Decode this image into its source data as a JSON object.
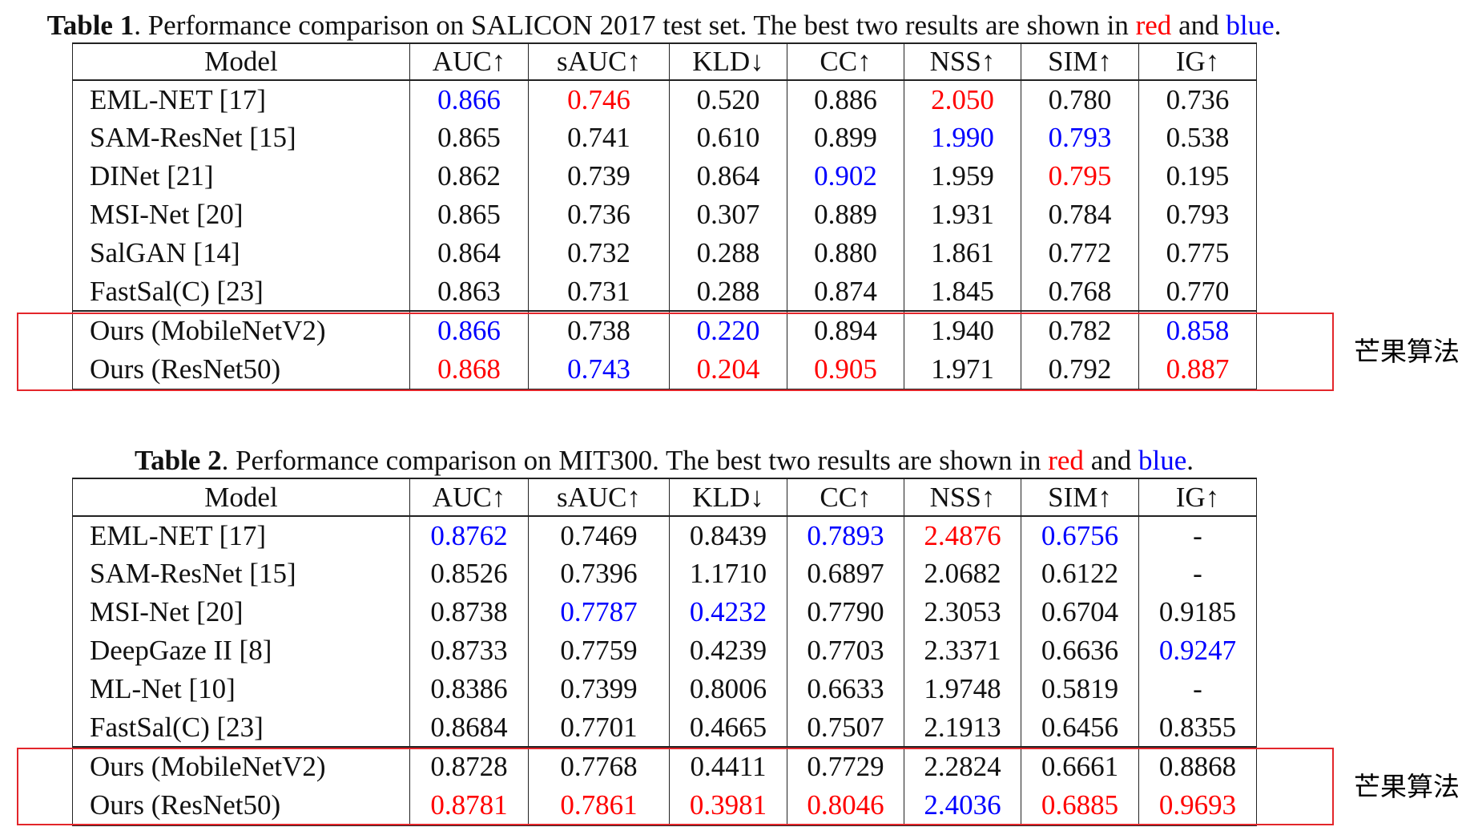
{
  "colors": {
    "red": "#ff0000",
    "blue": "#0000ff",
    "text": "#111111",
    "box": "#e3262b"
  },
  "tables": [
    {
      "caption": {
        "label": "Table 1",
        "text": ". Performance comparison on SALICON 2017 test set. The best two results are shown in ",
        "red_word": "red",
        "joiner": " and ",
        "blue_word": "blue",
        "end": "."
      },
      "headers": [
        "Model",
        "AUC↑",
        "sAUC↑",
        "KLD↓",
        "CC↑",
        "NSS↑",
        "SIM↑",
        "IG↑"
      ],
      "rows": [
        {
          "model": "EML-NET [17]",
          "values": [
            "0.866",
            "0.746",
            "0.520",
            "0.886",
            "2.050",
            "0.780",
            "0.736"
          ],
          "highlight": [
            "blue",
            "red",
            "",
            "",
            "red",
            "",
            ""
          ]
        },
        {
          "model": "SAM-ResNet [15]",
          "values": [
            "0.865",
            "0.741",
            "0.610",
            "0.899",
            "1.990",
            "0.793",
            "0.538"
          ],
          "highlight": [
            "",
            "",
            "",
            "",
            "blue",
            "blue",
            ""
          ]
        },
        {
          "model": "DINet [21]",
          "values": [
            "0.862",
            "0.739",
            "0.864",
            "0.902",
            "1.959",
            "0.795",
            "0.195"
          ],
          "highlight": [
            "",
            "",
            "",
            "blue",
            "",
            "red",
            ""
          ]
        },
        {
          "model": "MSI-Net [20]",
          "values": [
            "0.865",
            "0.736",
            "0.307",
            "0.889",
            "1.931",
            "0.784",
            "0.793"
          ]
        },
        {
          "model": "SalGAN [14]",
          "values": [
            "0.864",
            "0.732",
            "0.288",
            "0.880",
            "1.861",
            "0.772",
            "0.775"
          ]
        },
        {
          "model": "FastSal(C) [23]",
          "values": [
            "0.863",
            "0.731",
            "0.288",
            "0.874",
            "1.845",
            "0.768",
            "0.770"
          ]
        }
      ],
      "ours_rows": [
        {
          "model": "Ours (MobileNetV2)",
          "values": [
            "0.866",
            "0.738",
            "0.220",
            "0.894",
            "1.940",
            "0.782",
            "0.858"
          ],
          "highlight": [
            "blue",
            "",
            "blue",
            "",
            "",
            "",
            "blue"
          ]
        },
        {
          "model": "Ours (ResNet50)",
          "values": [
            "0.868",
            "0.743",
            "0.204",
            "0.905",
            "1.971",
            "0.792",
            "0.887"
          ],
          "highlight": [
            "red",
            "blue",
            "red",
            "red",
            "",
            "",
            "red"
          ]
        }
      ],
      "annotation": "芒果算法"
    },
    {
      "caption": {
        "label": "Table 2",
        "text": ". Performance comparison on MIT300. The best two results are shown in ",
        "red_word": "red",
        "joiner": " and ",
        "blue_word": "blue",
        "end": "."
      },
      "headers": [
        "Model",
        "AUC↑",
        "sAUC↑",
        "KLD↓",
        "CC↑",
        "NSS↑",
        "SIM↑",
        "IG↑"
      ],
      "rows": [
        {
          "model": "EML-NET [17]",
          "values": [
            "0.8762",
            "0.7469",
            "0.8439",
            "0.7893",
            "2.4876",
            "0.6756",
            "-"
          ],
          "highlight": [
            "blue",
            "",
            "",
            "blue",
            "red",
            "blue",
            ""
          ]
        },
        {
          "model": "SAM-ResNet [15]",
          "values": [
            "0.8526",
            "0.7396",
            "1.1710",
            "0.6897",
            "2.0682",
            "0.6122",
            "-"
          ]
        },
        {
          "model": "MSI-Net [20]",
          "values": [
            "0.8738",
            "0.7787",
            "0.4232",
            "0.7790",
            "2.3053",
            "0.6704",
            "0.9185"
          ],
          "highlight": [
            "",
            "blue",
            "blue",
            "",
            "",
            "",
            ""
          ]
        },
        {
          "model": "DeepGaze II [8]",
          "values": [
            "0.8733",
            "0.7759",
            "0.4239",
            "0.7703",
            "2.3371",
            "0.6636",
            "0.9247"
          ],
          "highlight": [
            "",
            "",
            "",
            "",
            "",
            "",
            "blue"
          ]
        },
        {
          "model": "ML-Net [10]",
          "values": [
            "0.8386",
            "0.7399",
            "0.8006",
            "0.6633",
            "1.9748",
            "0.5819",
            "-"
          ]
        },
        {
          "model": "FastSal(C) [23]",
          "values": [
            "0.8684",
            "0.7701",
            "0.4665",
            "0.7507",
            "2.1913",
            "0.6456",
            "0.8355"
          ]
        }
      ],
      "ours_rows": [
        {
          "model": "Ours (MobileNetV2)",
          "values": [
            "0.8728",
            "0.7768",
            "0.4411",
            "0.7729",
            "2.2824",
            "0.6661",
            "0.8868"
          ]
        },
        {
          "model": "Ours (ResNet50)",
          "values": [
            "0.8781",
            "0.7861",
            "0.3981",
            "0.8046",
            "2.4036",
            "0.6885",
            "0.9693"
          ],
          "highlight": [
            "red",
            "red",
            "red",
            "red",
            "blue",
            "red",
            "red"
          ]
        }
      ],
      "annotation": "芒果算法"
    }
  ]
}
